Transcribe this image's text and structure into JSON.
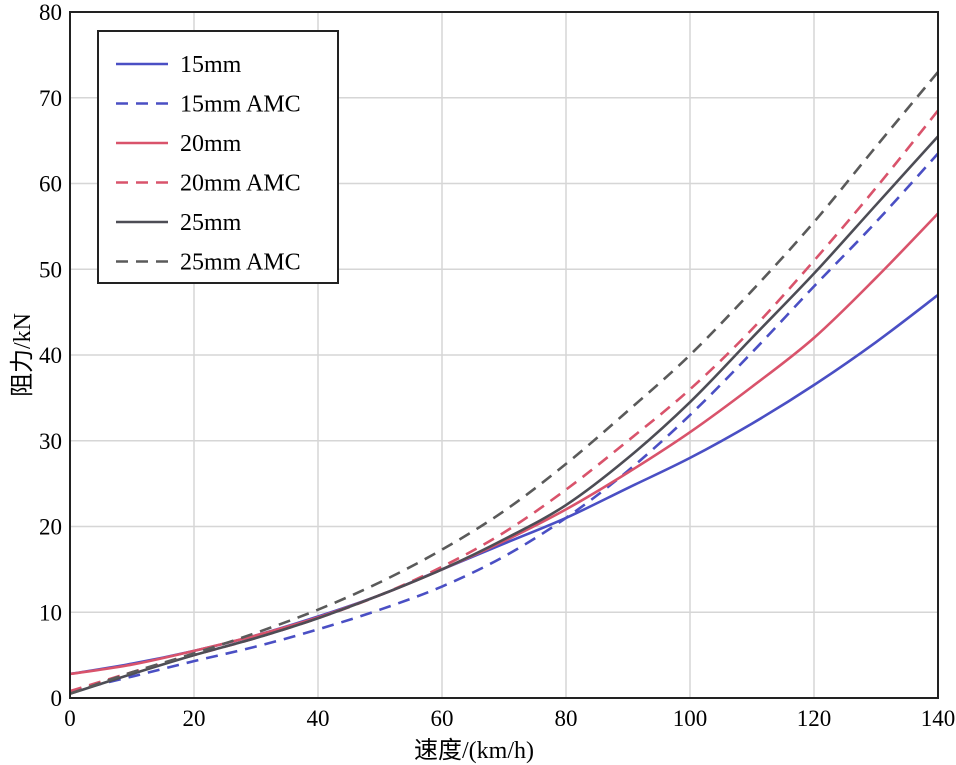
{
  "chart_data": {
    "type": "line",
    "xlabel": "速度/(km/h)",
    "ylabel": "阻力/kN",
    "xlim": [
      0,
      140
    ],
    "ylim": [
      0,
      80
    ],
    "xticks": [
      0,
      20,
      40,
      60,
      80,
      100,
      120,
      140
    ],
    "yticks": [
      0,
      10,
      20,
      30,
      40,
      50,
      60,
      70,
      80
    ],
    "grid": true,
    "legend_position": "top-left",
    "series": [
      {
        "name": "15mm",
        "color": "#4a4fc4",
        "dash": "solid",
        "x": [
          0,
          10,
          20,
          30,
          40,
          50,
          60,
          70,
          80,
          90,
          100,
          110,
          120,
          130,
          140
        ],
        "y": [
          2.8,
          4.0,
          5.5,
          7.3,
          9.5,
          12.0,
          15.0,
          18.0,
          21.0,
          24.5,
          28.0,
          32.0,
          36.5,
          41.5,
          47.0
        ]
      },
      {
        "name": "15mm AMC",
        "color": "#4a4fc4",
        "dash": "dashed",
        "x": [
          0,
          10,
          20,
          30,
          40,
          50,
          60,
          70,
          80,
          90,
          100,
          110,
          120,
          130,
          140
        ],
        "y": [
          0.8,
          2.5,
          4.3,
          6.0,
          8.0,
          10.3,
          13.0,
          16.5,
          21.0,
          26.5,
          33.0,
          40.3,
          48.0,
          55.5,
          63.5
        ]
      },
      {
        "name": "20mm",
        "color": "#d9536b",
        "dash": "solid",
        "x": [
          0,
          10,
          20,
          30,
          40,
          50,
          60,
          70,
          80,
          90,
          100,
          110,
          120,
          130,
          140
        ],
        "y": [
          2.8,
          3.9,
          5.5,
          7.3,
          9.4,
          12.0,
          15.0,
          18.3,
          22.0,
          26.3,
          31.0,
          36.3,
          42.0,
          49.0,
          56.5
        ]
      },
      {
        "name": "20mm AMC",
        "color": "#d9536b",
        "dash": "dashed",
        "x": [
          0,
          10,
          20,
          30,
          40,
          50,
          60,
          70,
          80,
          90,
          100,
          110,
          120,
          130,
          140
        ],
        "y": [
          0.8,
          3.0,
          5.0,
          7.0,
          9.3,
          12.0,
          15.3,
          19.3,
          24.3,
          30.0,
          36.0,
          43.0,
          51.0,
          59.5,
          68.5
        ]
      },
      {
        "name": "25mm",
        "color": "#4d4d55",
        "dash": "solid",
        "x": [
          0,
          10,
          20,
          30,
          40,
          50,
          60,
          70,
          80,
          90,
          100,
          110,
          120,
          130,
          140
        ],
        "y": [
          0.5,
          2.8,
          5.0,
          7.0,
          9.3,
          12.0,
          15.0,
          18.5,
          22.5,
          28.0,
          34.5,
          42.0,
          49.5,
          57.5,
          65.5
        ]
      },
      {
        "name": "25mm AMC",
        "color": "#5a5a5a",
        "dash": "dashed",
        "x": [
          0,
          10,
          20,
          30,
          40,
          50,
          60,
          70,
          80,
          90,
          100,
          110,
          120,
          130,
          140
        ],
        "y": [
          0.5,
          3.0,
          5.2,
          7.6,
          10.3,
          13.5,
          17.3,
          21.8,
          27.3,
          33.5,
          40.0,
          47.5,
          55.5,
          64.3,
          73.0
        ]
      }
    ]
  }
}
